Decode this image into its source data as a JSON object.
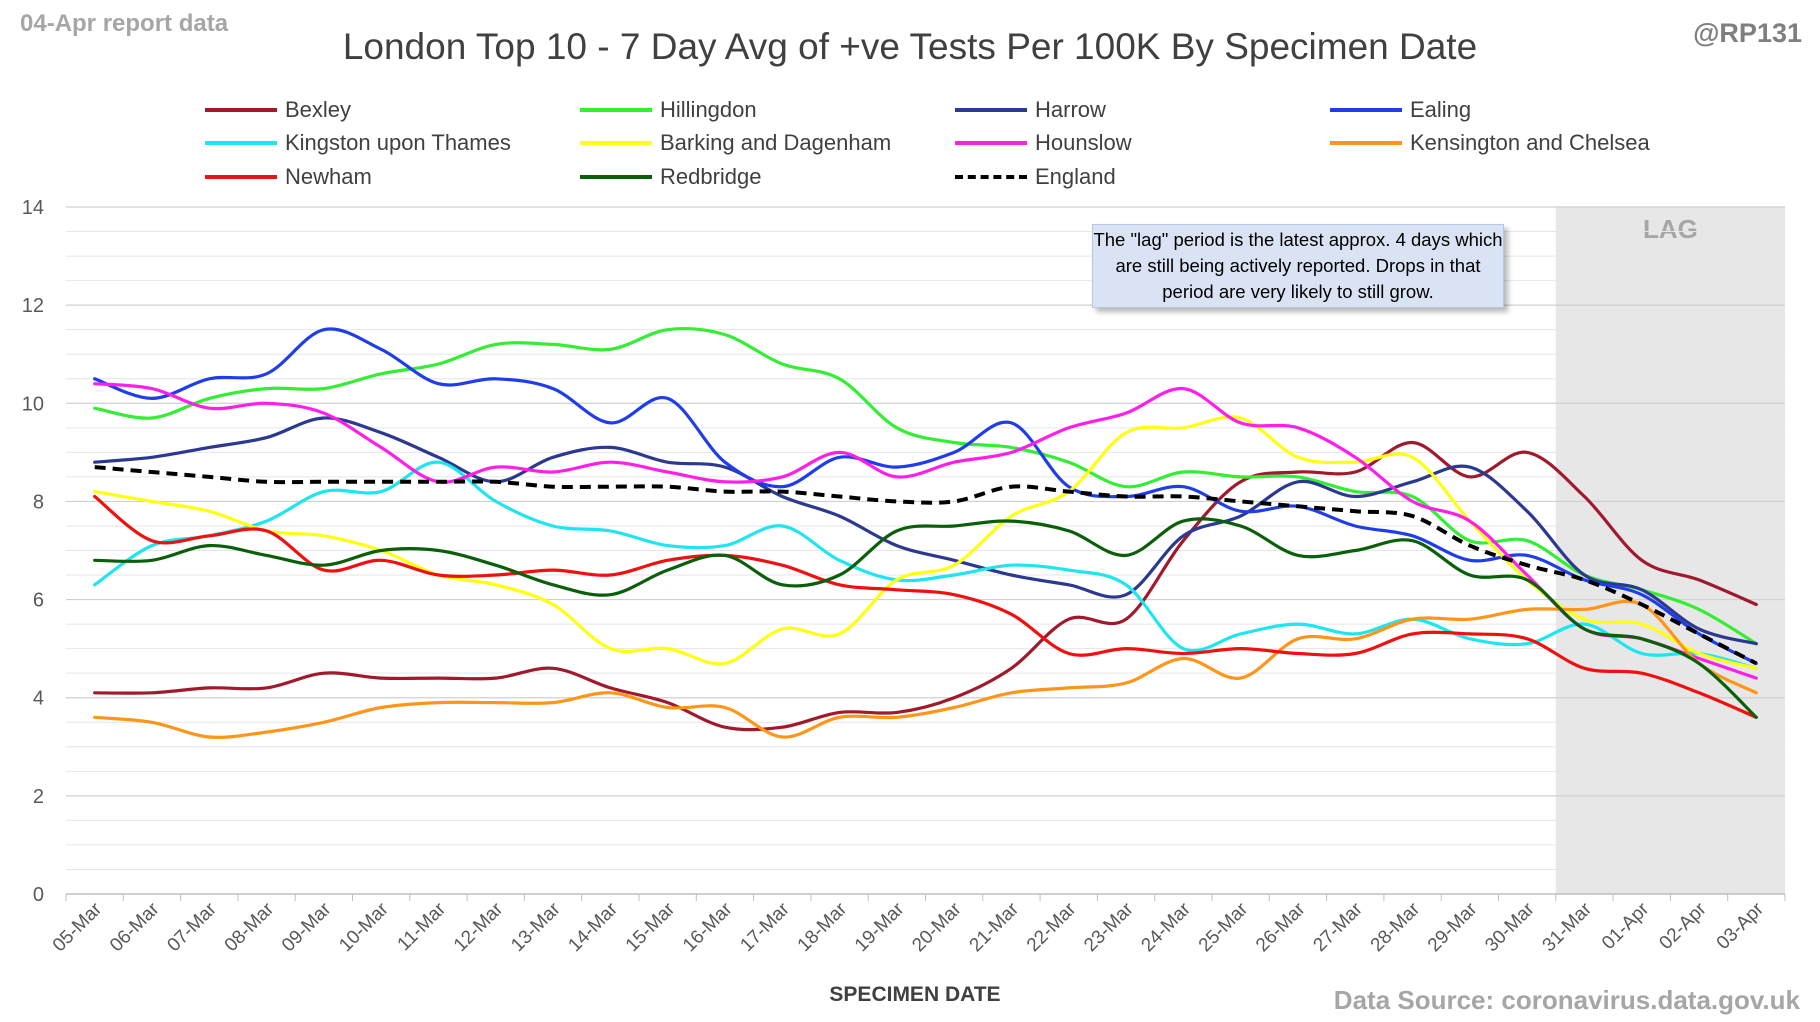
{
  "header": {
    "report_label": "04-Apr report data",
    "author": "@RP131",
    "source": "Data Source: coronavirus.data.gov.uk"
  },
  "note": "The \"lag\" period is the latest approx. 4 days which are still being actively reported. Drops in that period are very likely to still grow.",
  "chart_data": {
    "type": "line",
    "title": "London Top 10 - 7 Day Avg of +ve Tests Per 100K By Specimen Date",
    "xlabel": "SPECIMEN DATE",
    "ylabel": "",
    "ylim": [
      0,
      14
    ],
    "yticks": [
      0,
      2,
      4,
      6,
      8,
      10,
      12,
      14
    ],
    "grid": true,
    "legend_position": "top",
    "lag_label": "LAG",
    "lag_range": [
      "31-Mar",
      "03-Apr"
    ],
    "x": [
      "05-Mar",
      "06-Mar",
      "07-Mar",
      "08-Mar",
      "09-Mar",
      "10-Mar",
      "11-Mar",
      "12-Mar",
      "13-Mar",
      "14-Mar",
      "15-Mar",
      "16-Mar",
      "17-Mar",
      "18-Mar",
      "19-Mar",
      "20-Mar",
      "21-Mar",
      "22-Mar",
      "23-Mar",
      "24-Mar",
      "25-Mar",
      "26-Mar",
      "27-Mar",
      "28-Mar",
      "29-Mar",
      "30-Mar",
      "31-Mar",
      "01-Apr",
      "02-Apr",
      "03-Apr"
    ],
    "series": [
      {
        "name": "Bexley",
        "color": "#a0192c",
        "dashed": false,
        "values": [
          4.1,
          4.1,
          4.2,
          4.2,
          4.5,
          4.4,
          4.4,
          4.4,
          4.6,
          4.2,
          3.9,
          3.4,
          3.4,
          3.7,
          3.7,
          4.0,
          4.6,
          5.6,
          5.6,
          7.2,
          8.4,
          8.6,
          8.6,
          9.2,
          8.5,
          9.0,
          8.1,
          6.8,
          6.4,
          5.9
        ]
      },
      {
        "name": "Hillingdon",
        "color": "#33ee33",
        "dashed": false,
        "values": [
          9.9,
          9.7,
          10.1,
          10.3,
          10.3,
          10.6,
          10.8,
          11.2,
          11.2,
          11.1,
          11.5,
          11.4,
          10.8,
          10.5,
          9.5,
          9.2,
          9.1,
          8.8,
          8.3,
          8.6,
          8.5,
          8.5,
          8.2,
          8.1,
          7.2,
          7.2,
          6.5,
          6.2,
          5.8,
          5.1
        ]
      },
      {
        "name": "Harrow",
        "color": "#2b3990",
        "dashed": false,
        "values": [
          8.8,
          8.9,
          9.1,
          9.3,
          9.7,
          9.4,
          8.9,
          8.4,
          8.9,
          9.1,
          8.8,
          8.7,
          8.1,
          7.7,
          7.1,
          6.8,
          6.5,
          6.3,
          6.1,
          7.3,
          7.7,
          8.4,
          8.1,
          8.4,
          8.7,
          7.8,
          6.5,
          6.2,
          5.4,
          5.1
        ]
      },
      {
        "name": "Ealing",
        "color": "#1f3de8",
        "dashed": false,
        "values": [
          10.5,
          10.1,
          10.5,
          10.6,
          11.5,
          11.1,
          10.4,
          10.5,
          10.3,
          9.6,
          10.1,
          8.8,
          8.3,
          8.9,
          8.7,
          9.0,
          9.6,
          8.3,
          8.1,
          8.3,
          7.8,
          7.9,
          7.5,
          7.3,
          6.8,
          6.9,
          6.4,
          6.1,
          5.3,
          4.7
        ]
      },
      {
        "name": "Kingston upon Thames",
        "color": "#1fe5f0",
        "dashed": false,
        "values": [
          6.3,
          7.1,
          7.3,
          7.6,
          8.2,
          8.2,
          8.8,
          8.0,
          7.5,
          7.4,
          7.1,
          7.1,
          7.5,
          6.8,
          6.4,
          6.5,
          6.7,
          6.6,
          6.3,
          5.0,
          5.3,
          5.5,
          5.3,
          5.6,
          5.2,
          5.1,
          5.5,
          4.9,
          4.9,
          4.6
        ]
      },
      {
        "name": "Barking and Dagenham",
        "color": "#ffff10",
        "dashed": false,
        "values": [
          8.2,
          8.0,
          7.8,
          7.4,
          7.3,
          7.0,
          6.5,
          6.3,
          5.9,
          5.0,
          5.0,
          4.7,
          5.4,
          5.3,
          6.4,
          6.7,
          7.7,
          8.2,
          9.4,
          9.5,
          9.7,
          8.9,
          8.8,
          8.9,
          7.6,
          6.4,
          5.6,
          5.5,
          4.9,
          4.6
        ]
      },
      {
        "name": "Hounslow",
        "color": "#ff1fe8",
        "dashed": false,
        "values": [
          10.4,
          10.3,
          9.9,
          10.0,
          9.8,
          9.1,
          8.4,
          8.7,
          8.6,
          8.8,
          8.6,
          8.4,
          8.5,
          9.0,
          8.5,
          8.8,
          9.0,
          9.5,
          9.8,
          10.3,
          9.6,
          9.5,
          8.9,
          8.0,
          7.6,
          6.5,
          5.4,
          5.2,
          4.8,
          4.4
        ]
      },
      {
        "name": "Kensington and Chelsea",
        "color": "#ff9519",
        "dashed": false,
        "values": [
          3.6,
          3.5,
          3.2,
          3.3,
          3.5,
          3.8,
          3.9,
          3.9,
          3.9,
          4.1,
          3.8,
          3.8,
          3.2,
          3.6,
          3.6,
          3.8,
          4.1,
          4.2,
          4.3,
          4.8,
          4.4,
          5.2,
          5.2,
          5.6,
          5.6,
          5.8,
          5.8,
          5.9,
          4.7,
          4.1
        ]
      },
      {
        "name": "Newham",
        "color": "#ef1010",
        "dashed": false,
        "values": [
          8.1,
          7.2,
          7.3,
          7.4,
          6.6,
          6.8,
          6.5,
          6.5,
          6.6,
          6.5,
          6.8,
          6.9,
          6.7,
          6.3,
          6.2,
          6.1,
          5.7,
          4.9,
          5.0,
          4.9,
          5.0,
          4.9,
          4.9,
          5.3,
          5.3,
          5.2,
          4.6,
          4.5,
          4.1,
          3.6
        ]
      },
      {
        "name": "Redbridge",
        "color": "#0a5f0a",
        "dashed": false,
        "values": [
          6.8,
          6.8,
          7.1,
          6.9,
          6.7,
          7.0,
          7.0,
          6.7,
          6.3,
          6.1,
          6.6,
          6.9,
          6.3,
          6.5,
          7.4,
          7.5,
          7.6,
          7.4,
          6.9,
          7.6,
          7.5,
          6.9,
          7.0,
          7.2,
          6.5,
          6.4,
          5.4,
          5.2,
          4.7,
          3.6
        ]
      },
      {
        "name": "England",
        "color": "#000000",
        "dashed": true,
        "values": [
          8.7,
          8.6,
          8.5,
          8.4,
          8.4,
          8.4,
          8.4,
          8.4,
          8.3,
          8.3,
          8.3,
          8.2,
          8.2,
          8.1,
          8.0,
          8.0,
          8.3,
          8.2,
          8.1,
          8.1,
          8.0,
          7.9,
          7.8,
          7.7,
          7.1,
          6.7,
          6.4,
          5.9,
          5.3,
          4.7
        ]
      }
    ]
  }
}
